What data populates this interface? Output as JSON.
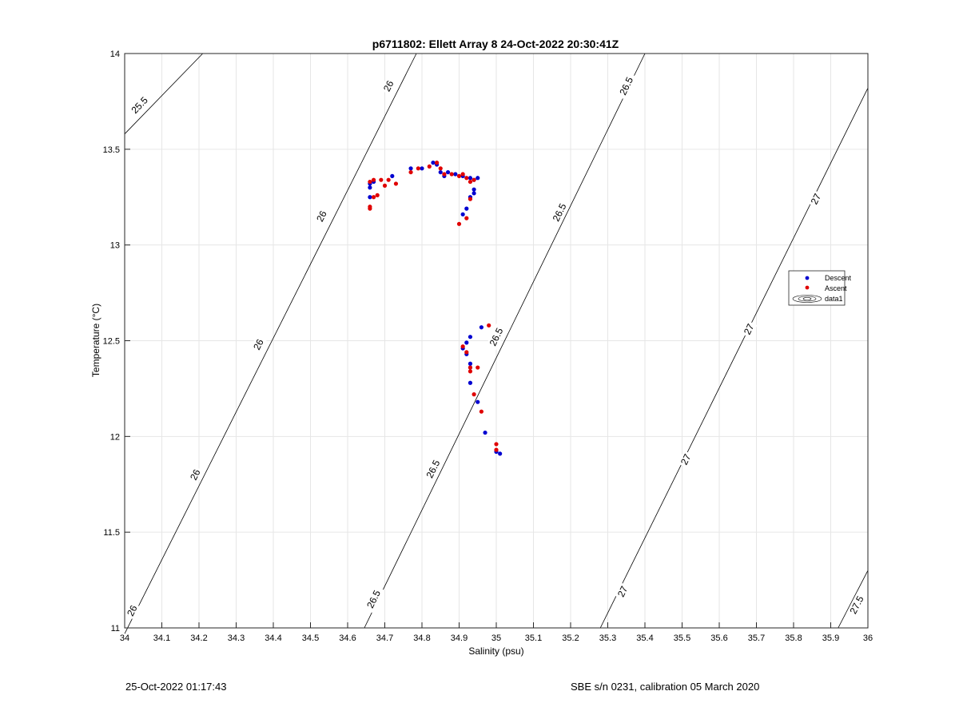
{
  "chart_data": {
    "type": "scatter",
    "title": "p6711802: Ellett Array 8 24-Oct-2022 20:30:41Z",
    "xlabel": "Salinity (psu)",
    "ylabel": "Temperature (°C)",
    "xlim": [
      34,
      36
    ],
    "ylim": [
      11,
      14
    ],
    "xticks": [
      34,
      34.1,
      34.2,
      34.3,
      34.4,
      34.5,
      34.6,
      34.7,
      34.8,
      34.9,
      35,
      35.1,
      35.2,
      35.3,
      35.4,
      35.5,
      35.6,
      35.7,
      35.8,
      35.9,
      36
    ],
    "xtick_labels": [
      "34",
      "34.1",
      "34.2",
      "34.3",
      "34.4",
      "34.5",
      "34.6",
      "34.7",
      "34.8",
      "34.9",
      "35",
      "35.1",
      "35.2",
      "35.3",
      "35.4",
      "35.5",
      "35.6",
      "35.7",
      "35.8",
      "35.9",
      "36"
    ],
    "yticks": [
      11,
      11.5,
      12,
      12.5,
      13,
      13.5,
      14
    ],
    "ytick_labels": [
      "11",
      "11.5",
      "12",
      "12.5",
      "13",
      "13.5",
      "14"
    ],
    "grid": true,
    "legend_position": "right",
    "legend": [
      "Descent",
      "Ascent",
      "data1"
    ],
    "series": [
      {
        "name": "Descent",
        "color": "#0000d0",
        "points": [
          [
            34.66,
            13.25
          ],
          [
            34.66,
            13.3
          ],
          [
            34.66,
            13.32
          ],
          [
            34.67,
            13.33
          ],
          [
            34.72,
            13.36
          ],
          [
            34.77,
            13.4
          ],
          [
            34.8,
            13.4
          ],
          [
            34.83,
            13.43
          ],
          [
            34.84,
            13.42
          ],
          [
            34.85,
            13.38
          ],
          [
            34.86,
            13.36
          ],
          [
            34.87,
            13.38
          ],
          [
            34.89,
            13.37
          ],
          [
            34.91,
            13.36
          ],
          [
            34.93,
            13.35
          ],
          [
            34.94,
            13.34
          ],
          [
            34.95,
            13.35
          ],
          [
            34.94,
            13.29
          ],
          [
            34.94,
            13.27
          ],
          [
            34.93,
            13.25
          ],
          [
            34.92,
            13.19
          ],
          [
            34.91,
            13.16
          ],
          [
            34.96,
            12.57
          ],
          [
            34.93,
            12.52
          ],
          [
            34.92,
            12.49
          ],
          [
            34.91,
            12.46
          ],
          [
            34.92,
            12.43
          ],
          [
            34.93,
            12.38
          ],
          [
            34.93,
            12.36
          ],
          [
            34.93,
            12.28
          ],
          [
            34.95,
            12.18
          ],
          [
            34.97,
            12.02
          ],
          [
            35.0,
            11.92
          ],
          [
            35.01,
            11.91
          ]
        ]
      },
      {
        "name": "Ascent",
        "color": "#e00000",
        "points": [
          [
            34.66,
            13.2
          ],
          [
            34.66,
            13.19
          ],
          [
            34.67,
            13.25
          ],
          [
            34.68,
            13.26
          ],
          [
            34.66,
            13.33
          ],
          [
            34.67,
            13.34
          ],
          [
            34.69,
            13.34
          ],
          [
            34.7,
            13.31
          ],
          [
            34.71,
            13.34
          ],
          [
            34.73,
            13.32
          ],
          [
            34.77,
            13.38
          ],
          [
            34.79,
            13.4
          ],
          [
            34.82,
            13.41
          ],
          [
            34.84,
            13.43
          ],
          [
            34.85,
            13.4
          ],
          [
            34.86,
            13.37
          ],
          [
            34.88,
            13.37
          ],
          [
            34.9,
            13.36
          ],
          [
            34.91,
            13.37
          ],
          [
            34.92,
            13.35
          ],
          [
            34.93,
            13.33
          ],
          [
            34.94,
            13.34
          ],
          [
            34.93,
            13.24
          ],
          [
            34.92,
            13.14
          ],
          [
            34.9,
            13.11
          ],
          [
            34.98,
            12.58
          ],
          [
            34.91,
            12.47
          ],
          [
            34.92,
            12.44
          ],
          [
            34.93,
            12.36
          ],
          [
            34.95,
            12.36
          ],
          [
            34.93,
            12.34
          ],
          [
            34.94,
            12.22
          ],
          [
            34.96,
            12.13
          ],
          [
            35.0,
            11.96
          ],
          [
            35.0,
            11.93
          ]
        ]
      }
    ],
    "contours": {
      "name": "data1",
      "levels": [
        25.5,
        26,
        26.5,
        27,
        27.5
      ],
      "lines": [
        {
          "level": "25.5",
          "s1": 34,
          "t1": 13.58,
          "s2": 34.21,
          "t2": 14
        },
        {
          "level": "26",
          "s1": 34,
          "t1": 10.97,
          "s2": 34.785,
          "t2": 14
        },
        {
          "level": "26.5",
          "s1": 34.645,
          "t1": 11,
          "s2": 35.4,
          "t2": 14
        },
        {
          "level": "27",
          "s1": 35.28,
          "t1": 11,
          "s2": 36,
          "t2": 13.82
        },
        {
          "level": "27.5",
          "s1": 35.92,
          "t1": 11,
          "s2": 36,
          "t2": 11.3
        }
      ],
      "labels": [
        {
          "text": "25.5",
          "s": 34.04,
          "t": 13.73
        },
        {
          "text": "26",
          "s": 34.71,
          "t": 13.83
        },
        {
          "text": "26",
          "s": 34.53,
          "t": 13.15
        },
        {
          "text": "26",
          "s": 34.36,
          "t": 12.48
        },
        {
          "text": "26",
          "s": 34.19,
          "t": 11.8
        },
        {
          "text": "26",
          "s": 34.02,
          "t": 11.09
        },
        {
          "text": "26.5",
          "s": 35.35,
          "t": 13.83
        },
        {
          "text": "26.5",
          "s": 35.17,
          "t": 13.17
        },
        {
          "text": "26.5",
          "s": 35.0,
          "t": 12.52
        },
        {
          "text": "26.5",
          "s": 34.83,
          "t": 11.83
        },
        {
          "text": "26.5",
          "s": 34.67,
          "t": 11.15
        },
        {
          "text": "27",
          "s": 35.86,
          "t": 13.24
        },
        {
          "text": "27",
          "s": 35.68,
          "t": 12.56
        },
        {
          "text": "27",
          "s": 35.51,
          "t": 11.88
        },
        {
          "text": "27",
          "s": 35.34,
          "t": 11.19
        },
        {
          "text": "27.5",
          "s": 35.97,
          "t": 11.12
        }
      ]
    }
  },
  "footer": {
    "timestamp": "25-Oct-2022 01:17:43",
    "calibration": "SBE s/n 0231, calibration 05 March 2020"
  }
}
